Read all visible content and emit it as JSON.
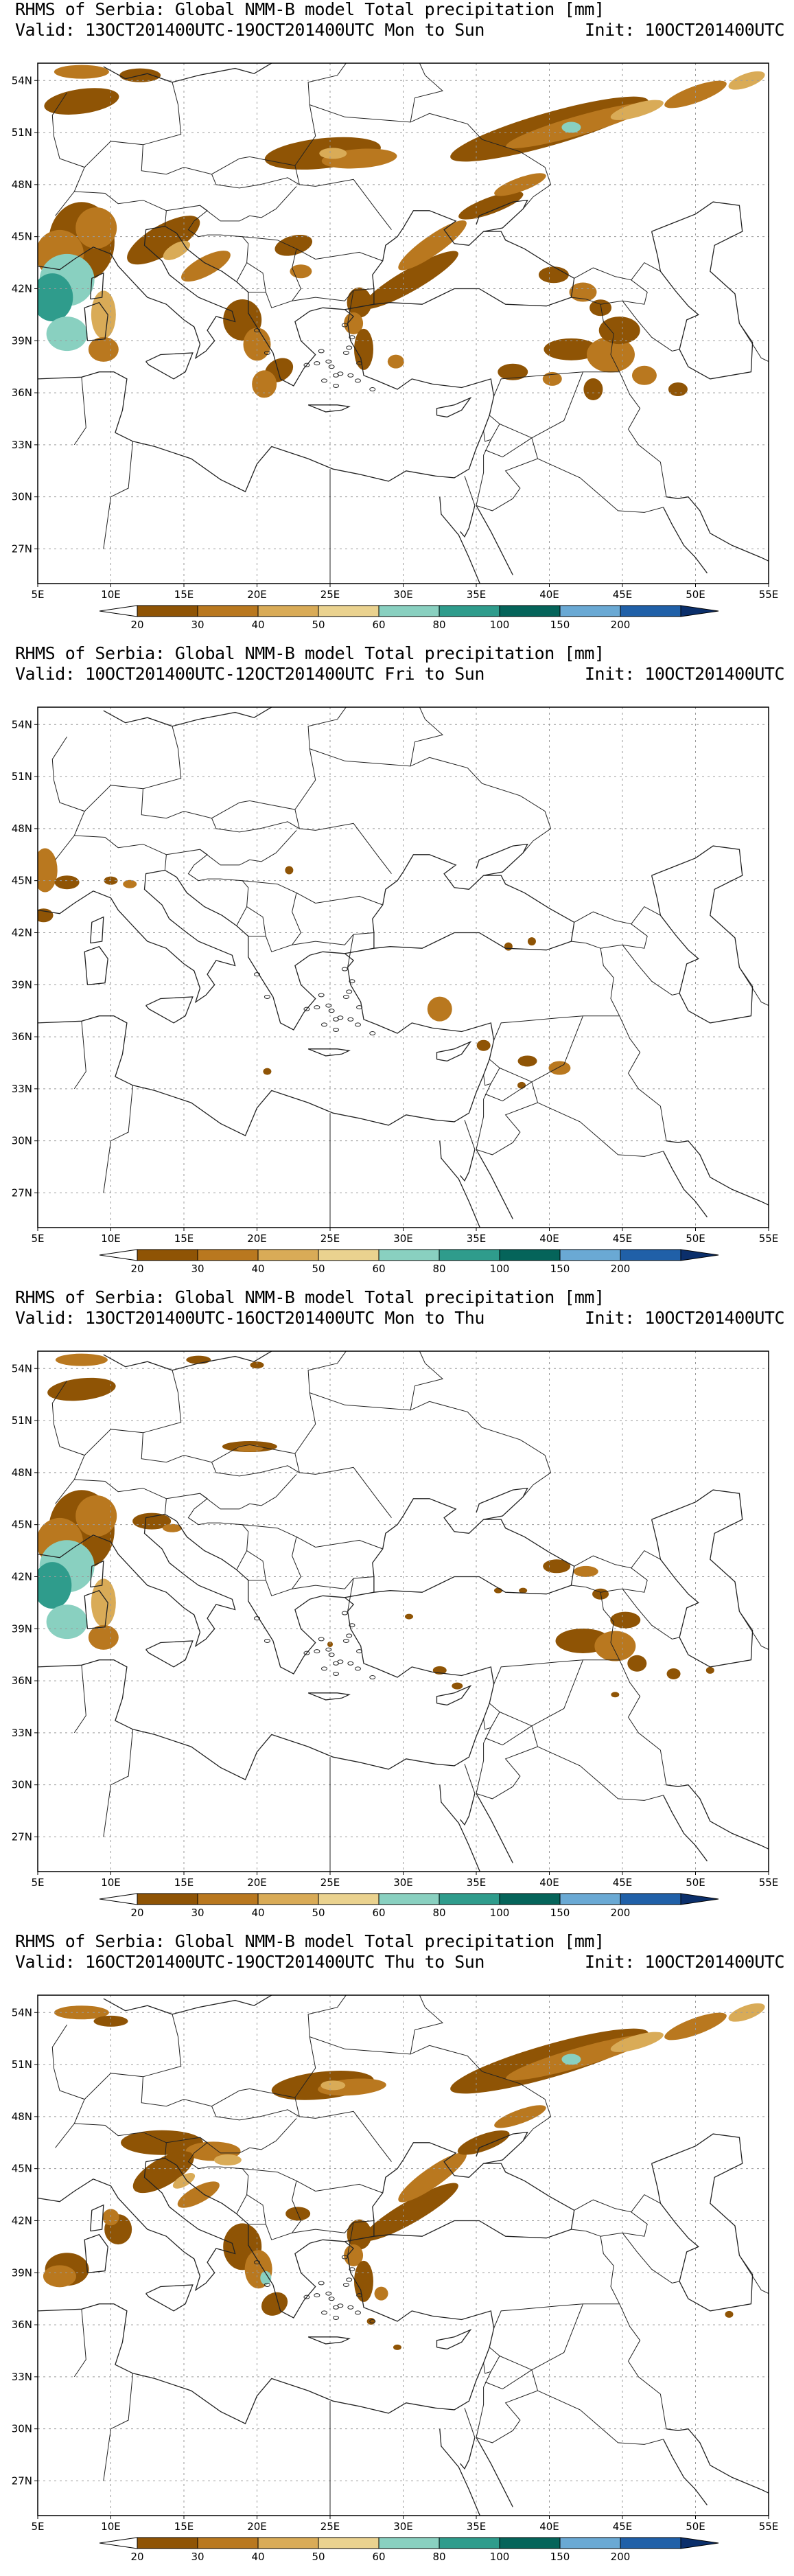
{
  "colors": {
    "p20": "#8f5405",
    "p30": "#b9781f",
    "p40": "#d9ab57",
    "p50": "#ead28f",
    "p60": "#89d0c0",
    "p80": "#2f9c8c",
    "p100": "#05645a",
    "p150": "#6aa9d4",
    "p200": "#2060a8",
    "lowEnd": "#ffffff",
    "highEnd": "#0b2f6b",
    "border": "#222222",
    "grid": "#9a9a9a"
  },
  "axes": {
    "lon_labels": [
      "5E",
      "10E",
      "15E",
      "20E",
      "25E",
      "30E",
      "35E",
      "40E",
      "45E",
      "50E",
      "55E"
    ],
    "lat_labels": [
      "54N",
      "51N",
      "48N",
      "45N",
      "42N",
      "39N",
      "36N",
      "33N",
      "30N",
      "27N"
    ]
  },
  "colorbar": {
    "labels": [
      "20",
      "30",
      "40",
      "50",
      "60",
      "80",
      "100",
      "150",
      "200"
    ]
  },
  "panels": [
    {
      "title": "RHMS of Serbia: Global NMM-B model Total precipitation [mm]",
      "valid": "Valid: 13OCT201400UTC-19OCT201400UTC Mon to Sun",
      "init": "Init: 10OCT201400UTC"
    },
    {
      "title": "RHMS of Serbia: Global NMM-B model Total precipitation [mm]",
      "valid": "Valid: 10OCT201400UTC-12OCT201400UTC Fri to Sun",
      "init": "Init: 10OCT201400UTC"
    },
    {
      "title": "RHMS of Serbia: Global NMM-B model Total precipitation [mm]",
      "valid": "Valid: 13OCT201400UTC-16OCT201400UTC Mon to Thu",
      "init": "Init: 10OCT201400UTC"
    },
    {
      "title": "RHMS of Serbia: Global NMM-B model Total precipitation [mm]",
      "valid": "Valid: 16OCT201400UTC-19OCT201400UTC Thu to Sun",
      "init": "Init: 10OCT201400UTC"
    }
  ]
}
